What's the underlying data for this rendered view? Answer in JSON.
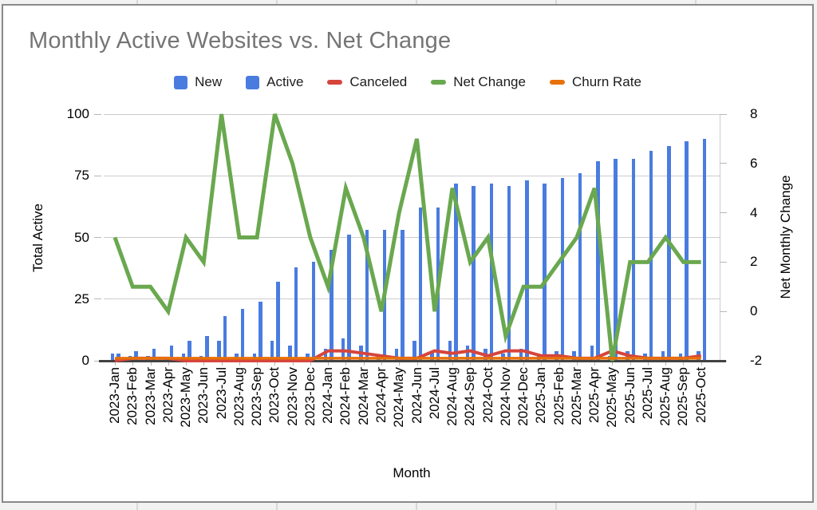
{
  "chart": {
    "title": "Monthly Active Websites vs. Net Change",
    "title_color": "#757575",
    "x_axis_title": "Month",
    "left_axis_title": "Total Active",
    "right_axis_title": "Net Monthly Change",
    "left_ticks": [
      0,
      25,
      50,
      75,
      100
    ],
    "right_ticks": [
      -2,
      0,
      2,
      4,
      6,
      8
    ],
    "legend": [
      {
        "label": "New",
        "swatch": "square",
        "color": "#4a7ce0"
      },
      {
        "label": "Active",
        "swatch": "square",
        "color": "#4a7ce0"
      },
      {
        "label": "Canceled",
        "swatch": "dash",
        "color": "#d6453c"
      },
      {
        "label": "Net Change",
        "swatch": "dash",
        "color": "#6aa84f"
      },
      {
        "label": "Churn Rate",
        "swatch": "dash",
        "color": "#e8710a"
      }
    ]
  },
  "chart_data": {
    "type": "combo",
    "categories": [
      "2023-Jan",
      "2023-Feb",
      "2023-Mar",
      "2023-Apr",
      "2023-May",
      "2023-Jun",
      "2023-Jul",
      "2023-Aug",
      "2023-Sep",
      "2023-Oct",
      "2023-Nov",
      "2023-Dec",
      "2024-Jan",
      "2024-Feb",
      "2024-Mar",
      "2024-Apr",
      "2024-May",
      "2024-Jun",
      "2024-Jul",
      "2024-Aug",
      "2024-Sep",
      "2024-Oct",
      "2024-Nov",
      "2024-Dec",
      "2025-Jan",
      "2025-Feb",
      "2025-Mar",
      "2025-Apr",
      "2025-May",
      "2025-Jun",
      "2025-Jul",
      "2025-Aug",
      "2025-Sep",
      "2025-Oct"
    ],
    "series": [
      {
        "name": "New",
        "type": "bar",
        "axis": "left",
        "color": "#4a7ce0",
        "values": [
          3,
          2,
          2,
          1,
          3,
          2,
          8,
          3,
          3,
          8,
          6,
          3,
          5,
          9,
          6,
          2,
          5,
          8,
          4,
          8,
          6,
          5,
          3,
          5,
          3,
          4,
          4,
          6,
          2,
          4,
          3,
          4,
          3,
          4
        ]
      },
      {
        "name": "Active",
        "type": "bar",
        "axis": "left",
        "color": "#4a7ce0",
        "values": [
          3,
          4,
          5,
          6,
          8,
          10,
          18,
          21,
          24,
          32,
          38,
          40,
          45,
          51,
          53,
          53,
          53,
          62,
          62,
          72,
          71,
          72,
          71,
          73,
          72,
          74,
          76,
          81,
          82,
          82,
          85,
          87,
          89,
          90
        ]
      },
      {
        "name": "Canceled",
        "type": "line",
        "axis": "left",
        "color": "#d6453c",
        "values": [
          0,
          1,
          1,
          1,
          0,
          0,
          0,
          0,
          0,
          0,
          0,
          0,
          4,
          4,
          3,
          2,
          1,
          1,
          4,
          3,
          4,
          2,
          4,
          4,
          2,
          2,
          1,
          1,
          4,
          2,
          1,
          1,
          1,
          2
        ]
      },
      {
        "name": "Net Change",
        "type": "line",
        "axis": "right",
        "color": "#6aa84f",
        "values": [
          3,
          1,
          1,
          0,
          3,
          2,
          8,
          3,
          3,
          8,
          6,
          3,
          1,
          5,
          3,
          0,
          4,
          7,
          0,
          5,
          2,
          3,
          -1,
          1,
          1,
          2,
          3,
          5,
          -2,
          2,
          2,
          3,
          2,
          2
        ]
      },
      {
        "name": "Churn Rate",
        "type": "line",
        "axis": "left",
        "color": "#e8710a",
        "values": [
          1,
          1,
          1,
          1,
          1,
          1,
          1,
          1,
          1,
          1,
          1,
          1,
          1,
          1,
          1,
          1,
          1,
          1,
          1,
          1,
          1,
          1,
          1,
          1,
          1,
          1,
          1,
          1,
          1,
          1,
          1,
          1,
          1,
          1
        ]
      }
    ],
    "left_axis": {
      "title": "Total Active",
      "range": [
        0,
        100
      ]
    },
    "right_axis": {
      "title": "Net Monthly Change",
      "range": [
        -2,
        8
      ]
    },
    "x_axis": {
      "title": "Month"
    },
    "grid": true,
    "legend_position": "top"
  }
}
